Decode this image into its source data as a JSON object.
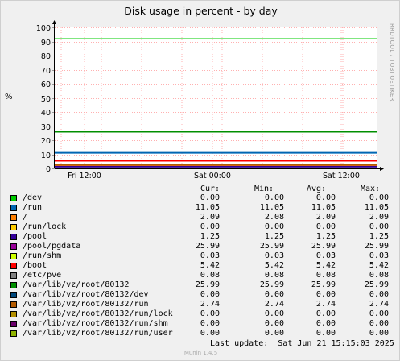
{
  "chart_data": {
    "type": "line",
    "title": "Disk usage in percent - by day",
    "ylabel": "%",
    "ylim": [
      0,
      100
    ],
    "y_ticks": [
      "0",
      "10",
      "20",
      "30",
      "40",
      "50",
      "60",
      "70",
      "80",
      "90",
      "100"
    ],
    "x_tick_labels": [
      "Fri 12:00",
      "Sat 00:00",
      "Sat 12:00"
    ],
    "grid": true,
    "warning_line": 92,
    "series": [
      {
        "name": "/dev",
        "color": "#00cc00",
        "cur": "0.00",
        "min": "0.00",
        "avg": "0.00",
        "max": "0.00",
        "value": 0.0
      },
      {
        "name": "/run",
        "color": "#0066b3",
        "cur": "11.05",
        "min": "11.05",
        "avg": "11.05",
        "max": "11.05",
        "value": 11.05
      },
      {
        "name": "/",
        "color": "#ff8000",
        "cur": "2.09",
        "min": "2.08",
        "avg": "2.09",
        "max": "2.09",
        "value": 2.09
      },
      {
        "name": "/run/lock",
        "color": "#ffcc00",
        "cur": "0.00",
        "min": "0.00",
        "avg": "0.00",
        "max": "0.00",
        "value": 0.0
      },
      {
        "name": "/pool",
        "color": "#330099",
        "cur": "1.25",
        "min": "1.25",
        "avg": "1.25",
        "max": "1.25",
        "value": 1.25
      },
      {
        "name": "/pool/pgdata",
        "color": "#990099",
        "cur": "25.99",
        "min": "25.99",
        "avg": "25.99",
        "max": "25.99",
        "value": 25.99
      },
      {
        "name": "/run/shm",
        "color": "#ccff00",
        "cur": "0.03",
        "min": "0.03",
        "avg": "0.03",
        "max": "0.03",
        "value": 0.03
      },
      {
        "name": "/boot",
        "color": "#ff0000",
        "cur": "5.42",
        "min": "5.42",
        "avg": "5.42",
        "max": "5.42",
        "value": 5.42
      },
      {
        "name": "/etc/pve",
        "color": "#808080",
        "cur": "0.08",
        "min": "0.08",
        "avg": "0.08",
        "max": "0.08",
        "value": 0.08
      },
      {
        "name": "/var/lib/vz/root/80132",
        "color": "#008f00",
        "cur": "25.99",
        "min": "25.99",
        "avg": "25.99",
        "max": "25.99",
        "value": 25.99
      },
      {
        "name": "/var/lib/vz/root/80132/dev",
        "color": "#00487d",
        "cur": "0.00",
        "min": "0.00",
        "avg": "0.00",
        "max": "0.00",
        "value": 0.0
      },
      {
        "name": "/var/lib/vz/root/80132/run",
        "color": "#b35a00",
        "cur": "2.74",
        "min": "2.74",
        "avg": "2.74",
        "max": "2.74",
        "value": 2.74
      },
      {
        "name": "/var/lib/vz/root/80132/run/lock",
        "color": "#b38f00",
        "cur": "0.00",
        "min": "0.00",
        "avg": "0.00",
        "max": "0.00",
        "value": 0.0
      },
      {
        "name": "/var/lib/vz/root/80132/run/shm",
        "color": "#6b006b",
        "cur": "0.00",
        "min": "0.00",
        "avg": "0.00",
        "max": "0.00",
        "value": 0.0
      },
      {
        "name": "/var/lib/vz/root/80132/run/user",
        "color": "#8fb300",
        "cur": "0.00",
        "min": "0.00",
        "avg": "0.00",
        "max": "0.00",
        "value": 0.0
      }
    ]
  },
  "legend_headers": {
    "cur": "Cur:",
    "min": "Min:",
    "avg": "Avg:",
    "max": "Max:"
  },
  "last_update": "Last update:  Sat Jun 21 15:15:03 2025",
  "side_credit": "RRDTOOL / TOBI OETIKER",
  "version": "Munin 1.4.5"
}
